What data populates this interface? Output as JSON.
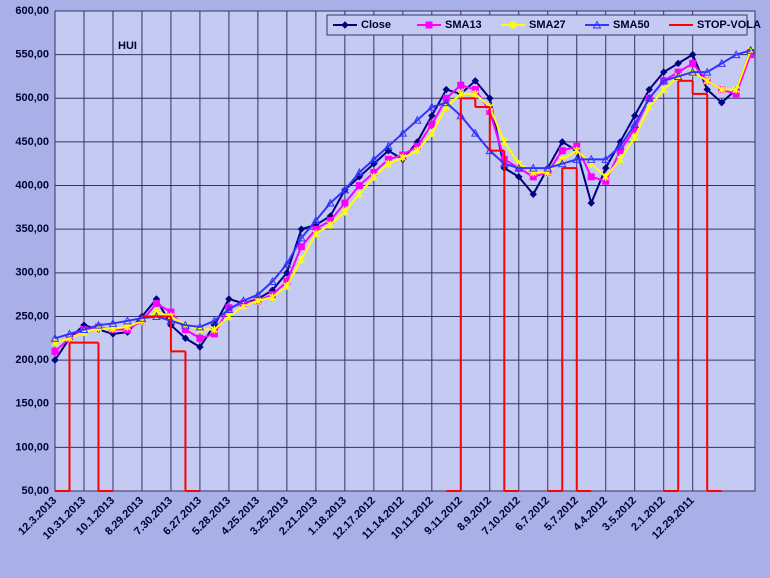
{
  "chart_data": {
    "type": "line",
    "title": "HUI",
    "categories": [
      "12.3.2013",
      null,
      "10.31.2013",
      null,
      "10.1.2013",
      null,
      "8.29.2013",
      null,
      "7.30.2013",
      null,
      "6.27.2013",
      null,
      "5.28.2013",
      null,
      "4.25.2013",
      null,
      "3.25.2013",
      null,
      "2.21.2013",
      null,
      "1.18.2013",
      null,
      "12.17.2012",
      null,
      "11.14.2012",
      null,
      "10.11.2012",
      null,
      "9.11.2012",
      null,
      "8.9.2012",
      null,
      "7.10.2012",
      null,
      "6.7.2012",
      null,
      "5.7.2012",
      null,
      "4.4.2012",
      null,
      "3.5.2012",
      null,
      "2.1.2012",
      null,
      "12.29.2011",
      null,
      null,
      null,
      null
    ],
    "series": [
      {
        "name": "Close",
        "color": "#000080",
        "marker": "diamond",
        "values": [
          200,
          225,
          240,
          235,
          230,
          232,
          250,
          270,
          240,
          225,
          215,
          240,
          270,
          265,
          270,
          280,
          300,
          350,
          355,
          365,
          395,
          410,
          425,
          440,
          430,
          450,
          480,
          510,
          505,
          520,
          500,
          420,
          410,
          390,
          420,
          450,
          440,
          380,
          420,
          450,
          480,
          510,
          530,
          540,
          550,
          510,
          495,
          510,
          555
        ]
      },
      {
        "name": "SMA13",
        "color": "#ff00ff",
        "marker": "square",
        "values": [
          210,
          225,
          235,
          238,
          235,
          235,
          245,
          265,
          255,
          235,
          225,
          230,
          260,
          265,
          268,
          275,
          290,
          330,
          350,
          360,
          380,
          400,
          415,
          430,
          435,
          445,
          470,
          500,
          515,
          510,
          485,
          430,
          420,
          410,
          415,
          440,
          445,
          410,
          405,
          440,
          465,
          500,
          520,
          530,
          540,
          520,
          510,
          505,
          550
        ]
      },
      {
        "name": "SMA27",
        "color": "#ffff00",
        "marker": "cross",
        "values": [
          220,
          225,
          232,
          236,
          236,
          238,
          245,
          255,
          250,
          240,
          235,
          235,
          250,
          262,
          268,
          272,
          285,
          315,
          345,
          355,
          370,
          390,
          410,
          425,
          432,
          440,
          460,
          490,
          505,
          505,
          490,
          450,
          425,
          415,
          415,
          430,
          440,
          425,
          410,
          430,
          455,
          490,
          510,
          525,
          530,
          520,
          510,
          510,
          555
        ]
      },
      {
        "name": "SMA50",
        "color": "#3333ff",
        "marker": "triangle",
        "values": [
          225,
          230,
          235,
          240,
          242,
          245,
          248,
          250,
          245,
          240,
          238,
          245,
          258,
          268,
          275,
          290,
          310,
          340,
          360,
          380,
          395,
          415,
          430,
          445,
          460,
          475,
          490,
          495,
          480,
          460,
          440,
          425,
          420,
          420,
          420,
          425,
          430,
          430,
          430,
          445,
          470,
          500,
          520,
          525,
          530,
          530,
          540,
          550,
          555
        ]
      },
      {
        "name": "STOP-VOLA",
        "color": "#ff0000",
        "step": true,
        "values": [
          50,
          220,
          220,
          50,
          null,
          null,
          250,
          250,
          210,
          50,
          null,
          null,
          null,
          null,
          null,
          null,
          null,
          null,
          null,
          null,
          null,
          null,
          null,
          null,
          null,
          null,
          null,
          50,
          500,
          490,
          440,
          50,
          null,
          null,
          50,
          420,
          50,
          null,
          null,
          null,
          null,
          null,
          50,
          520,
          505,
          50,
          null,
          null,
          null
        ]
      }
    ],
    "ylim": [
      50,
      600
    ],
    "yticks": [
      {
        "value": 50,
        "label": "50,00"
      },
      {
        "value": 100,
        "label": "100,00"
      },
      {
        "value": 150,
        "label": "150,00"
      },
      {
        "value": 200,
        "label": "200,00"
      },
      {
        "value": 250,
        "label": "250,00"
      },
      {
        "value": 300,
        "label": "300,00"
      },
      {
        "value": 350,
        "label": "350,00"
      },
      {
        "value": 400,
        "label": "400,00"
      },
      {
        "value": 450,
        "label": "450,00"
      },
      {
        "value": 500,
        "label": "500,00"
      },
      {
        "value": 550,
        "label": "550,00"
      },
      {
        "value": 600,
        "label": "600,00"
      }
    ],
    "grid": true,
    "legend": "top-right"
  }
}
